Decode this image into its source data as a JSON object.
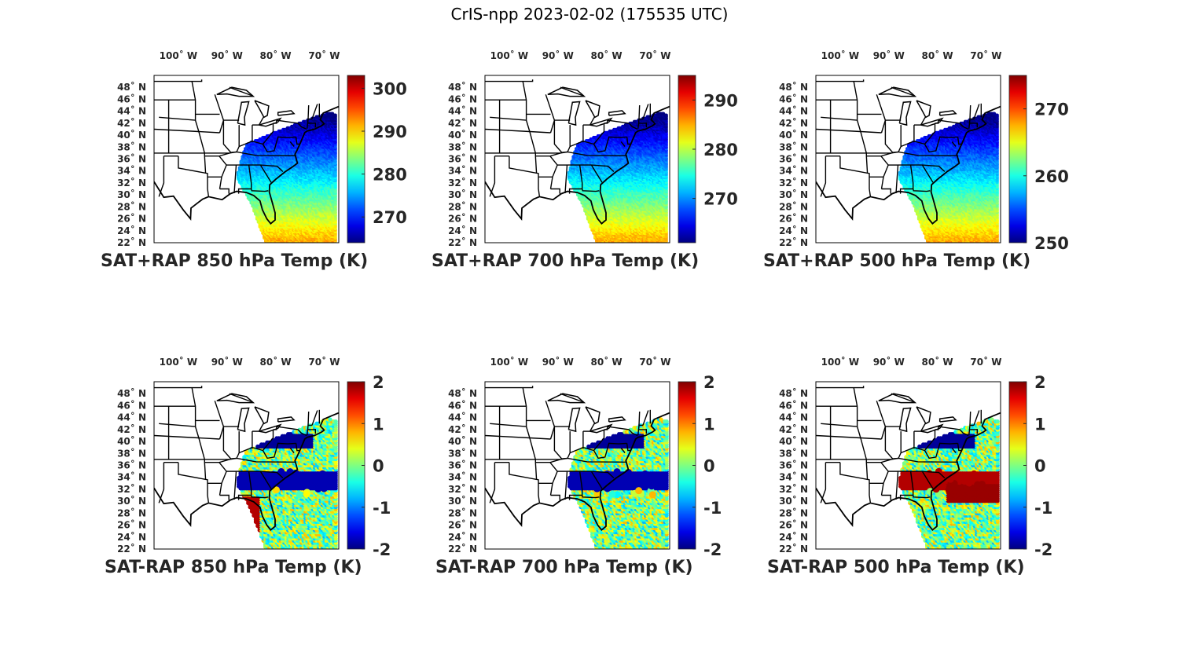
{
  "figure": {
    "title": "CrIS-npp 2023-02-02 (175535 UTC)"
  },
  "map": {
    "lon_ticks": [
      "100˚ W",
      "90˚ W",
      "80˚ W",
      "70˚ W"
    ],
    "lon_tick_values": [
      -100,
      -90,
      -80,
      -70
    ],
    "lat_ticks": [
      "48˚ N",
      "46˚ N",
      "44˚ N",
      "42˚ N",
      "40˚ N",
      "38˚ N",
      "36˚ N",
      "34˚ N",
      "32˚ N",
      "30˚ N",
      "28˚ N",
      "26˚ N",
      "24˚ N",
      "22˚ N"
    ],
    "lat_tick_values": [
      48,
      46,
      44,
      42,
      40,
      38,
      36,
      34,
      32,
      30,
      28,
      26,
      24,
      22
    ],
    "lon_range": [
      -105,
      -67
    ],
    "lat_range": [
      22,
      50
    ]
  },
  "colors": {
    "colormap": "jet",
    "land_outline": "#000000",
    "background": "#ffffff"
  },
  "chart_data": [
    {
      "type": "heatmap",
      "title": "SAT+RAP 850 hPa Temp (K)",
      "colorbar_ticks": [
        "300",
        "290",
        "280",
        "270"
      ],
      "colorbar_tick_values": [
        300,
        290,
        280,
        270
      ],
      "clim": [
        264,
        303
      ],
      "field": "total"
    },
    {
      "type": "heatmap",
      "title": "SAT+RAP 700 hPa Temp (K)",
      "colorbar_ticks": [
        "290",
        "280",
        "270"
      ],
      "colorbar_tick_values": [
        290,
        280,
        270
      ],
      "clim": [
        261,
        295
      ],
      "field": "total"
    },
    {
      "type": "heatmap",
      "title": "SAT+RAP 500 hPa Temp (K)",
      "colorbar_ticks": [
        "270",
        "260",
        "250"
      ],
      "colorbar_tick_values": [
        270,
        260,
        250
      ],
      "clim": [
        250,
        275
      ],
      "field": "total"
    },
    {
      "type": "heatmap",
      "title": "SAT-RAP 850 hPa Temp (K)",
      "colorbar_ticks": [
        "2",
        "1",
        "0",
        "-1",
        "-2"
      ],
      "colorbar_tick_values": [
        2,
        1,
        0,
        -1,
        -2
      ],
      "clim": [
        -2,
        2
      ],
      "field": "diff"
    },
    {
      "type": "heatmap",
      "title": "SAT-RAP 700 hPa Temp (K)",
      "colorbar_ticks": [
        "2",
        "1",
        "0",
        "-1",
        "-2"
      ],
      "colorbar_tick_values": [
        2,
        1,
        0,
        -1,
        -2
      ],
      "clim": [
        -2,
        2
      ],
      "field": "diff"
    },
    {
      "type": "heatmap",
      "title": "SAT-RAP 500 hPa Temp (K)",
      "colorbar_ticks": [
        "2",
        "1",
        "0",
        "-1",
        "-2"
      ],
      "colorbar_tick_values": [
        2,
        1,
        0,
        -1,
        -2
      ],
      "clim": [
        -2,
        2
      ],
      "field": "diff"
    }
  ]
}
